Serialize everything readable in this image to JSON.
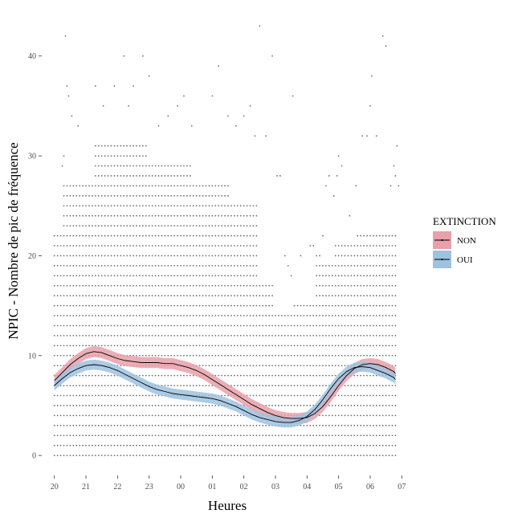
{
  "chart_data": {
    "type": "scatter",
    "title": "",
    "xlabel": "Heures",
    "ylabel": "NPIC - Nombre de pic de fréquence",
    "x_tick_labels": [
      "20",
      "21",
      "22",
      "23",
      "00",
      "01",
      "02",
      "03",
      "04",
      "05",
      "06",
      "07"
    ],
    "x_tick_values": [
      0,
      1,
      2,
      3,
      4,
      5,
      6,
      7,
      8,
      9,
      10,
      11
    ],
    "y_tick_labels": [
      "0",
      "10",
      "20",
      "30",
      "40"
    ],
    "y_tick_values": [
      0,
      10,
      20,
      30,
      40
    ],
    "xlim": [
      -0.4,
      11.4
    ],
    "ylim": [
      -2,
      44
    ],
    "grid": false,
    "legend": {
      "title": "EXTINCTION",
      "position": "right",
      "entries": [
        {
          "name": "NON",
          "fill": "#e8a0aa"
        },
        {
          "name": "OUI",
          "fill": "#9ec2e0"
        }
      ]
    },
    "points": {
      "x_step": 0.1,
      "columns": [
        {
          "from": 0.0,
          "to": 0.3,
          "ymax": 22
        },
        {
          "from": 0.3,
          "to": 1.3,
          "ymax": 27
        },
        {
          "from": 1.3,
          "to": 3.0,
          "ymax": 31
        },
        {
          "from": 3.0,
          "to": 4.4,
          "ymax": 29
        },
        {
          "from": 4.4,
          "to": 5.6,
          "ymax": 27
        },
        {
          "from": 5.6,
          "to": 6.5,
          "ymax": 25
        },
        {
          "from": 6.5,
          "to": 7.0,
          "ymax": 17
        },
        {
          "from": 7.0,
          "to": 7.6,
          "ymax": 14
        },
        {
          "from": 7.6,
          "to": 8.3,
          "ymax": 15
        },
        {
          "from": 8.3,
          "to": 8.9,
          "ymax": 19
        },
        {
          "from": 8.9,
          "to": 9.6,
          "ymax": 21
        },
        {
          "from": 9.6,
          "to": 10.9,
          "ymax": 22
        }
      ],
      "outliers": [
        [
          0.35,
          42
        ],
        [
          0.4,
          37
        ],
        [
          0.45,
          36
        ],
        [
          0.55,
          34
        ],
        [
          0.75,
          33
        ],
        [
          0.25,
          29
        ],
        [
          0.3,
          30
        ],
        [
          1.3,
          37
        ],
        [
          1.55,
          35
        ],
        [
          1.9,
          37
        ],
        [
          2.2,
          40
        ],
        [
          2.35,
          35
        ],
        [
          2.5,
          37
        ],
        [
          2.8,
          40
        ],
        [
          3.0,
          38
        ],
        [
          3.3,
          33
        ],
        [
          3.6,
          34
        ],
        [
          3.9,
          35
        ],
        [
          4.1,
          36
        ],
        [
          4.35,
          33
        ],
        [
          5.0,
          36
        ],
        [
          5.2,
          39
        ],
        [
          5.5,
          34
        ],
        [
          5.75,
          33
        ],
        [
          6.0,
          34
        ],
        [
          6.2,
          35
        ],
        [
          6.35,
          32
        ],
        [
          6.5,
          43
        ],
        [
          6.7,
          32
        ],
        [
          6.9,
          40
        ],
        [
          7.05,
          28
        ],
        [
          7.15,
          28
        ],
        [
          7.55,
          36
        ],
        [
          8.6,
          27
        ],
        [
          8.7,
          28
        ],
        [
          8.85,
          26
        ],
        [
          8.95,
          28
        ],
        [
          9.0,
          30
        ],
        [
          9.1,
          29
        ],
        [
          9.35,
          24
        ],
        [
          9.55,
          27
        ],
        [
          9.75,
          32
        ],
        [
          9.9,
          32
        ],
        [
          10.0,
          35
        ],
        [
          10.05,
          38
        ],
        [
          10.2,
          32
        ],
        [
          10.4,
          42
        ],
        [
          10.5,
          41
        ],
        [
          10.65,
          27
        ],
        [
          10.75,
          29
        ],
        [
          10.85,
          31
        ],
        [
          10.8,
          28
        ],
        [
          10.9,
          27
        ],
        [
          7.3,
          20
        ],
        [
          7.4,
          19
        ],
        [
          7.5,
          18
        ],
        [
          7.8,
          20
        ],
        [
          8.1,
          21
        ],
        [
          8.2,
          21
        ],
        [
          8.3,
          20
        ],
        [
          8.4,
          20
        ],
        [
          8.5,
          22
        ]
      ]
    },
    "series": [
      {
        "name": "NON",
        "fill": "#e8a0aa",
        "x": [
          0.0,
          0.25,
          0.5,
          0.75,
          1.0,
          1.25,
          1.5,
          1.75,
          2.0,
          2.25,
          2.5,
          2.75,
          3.0,
          3.25,
          3.5,
          3.75,
          4.0,
          4.25,
          4.5,
          4.75,
          5.0,
          5.25,
          5.5,
          5.75,
          6.0,
          6.25,
          6.5,
          6.75,
          7.0,
          7.25,
          7.5,
          7.75,
          8.0,
          8.25,
          8.5,
          8.75,
          9.0,
          9.25,
          9.5,
          9.75,
          10.0,
          10.25,
          10.5,
          10.75,
          10.8
        ],
        "y": [
          7.5,
          8.3,
          9.1,
          9.7,
          10.2,
          10.4,
          10.3,
          10.0,
          9.7,
          9.5,
          9.4,
          9.3,
          9.3,
          9.3,
          9.2,
          9.2,
          9.0,
          8.8,
          8.5,
          8.1,
          7.6,
          7.1,
          6.6,
          6.1,
          5.6,
          5.1,
          4.7,
          4.3,
          4.0,
          3.8,
          3.7,
          3.7,
          3.8,
          4.2,
          4.9,
          5.9,
          7.0,
          8.0,
          8.7,
          9.1,
          9.2,
          9.1,
          8.8,
          8.4,
          8.2
        ],
        "band": 0.55
      },
      {
        "name": "OUI",
        "fill": "#9ec2e0",
        "x": [
          0.0,
          0.25,
          0.5,
          0.75,
          1.0,
          1.25,
          1.5,
          1.75,
          2.0,
          2.25,
          2.5,
          2.75,
          3.0,
          3.25,
          3.5,
          3.75,
          4.0,
          4.25,
          4.5,
          4.75,
          5.0,
          5.25,
          5.5,
          5.75,
          6.0,
          6.25,
          6.5,
          6.75,
          7.0,
          7.25,
          7.5,
          7.75,
          8.0,
          8.25,
          8.5,
          8.75,
          9.0,
          9.25,
          9.5,
          9.75,
          10.0,
          10.25,
          10.5,
          10.75,
          10.8
        ],
        "y": [
          7.0,
          7.7,
          8.3,
          8.7,
          9.0,
          9.1,
          9.0,
          8.8,
          8.5,
          8.1,
          7.7,
          7.3,
          6.9,
          6.6,
          6.4,
          6.2,
          6.1,
          6.0,
          5.9,
          5.8,
          5.7,
          5.5,
          5.2,
          4.9,
          4.5,
          4.1,
          3.8,
          3.6,
          3.4,
          3.3,
          3.3,
          3.5,
          3.9,
          4.6,
          5.6,
          6.7,
          7.7,
          8.4,
          8.8,
          8.9,
          8.8,
          8.5,
          8.2,
          7.8,
          7.6
        ],
        "band": 0.5
      }
    ]
  }
}
